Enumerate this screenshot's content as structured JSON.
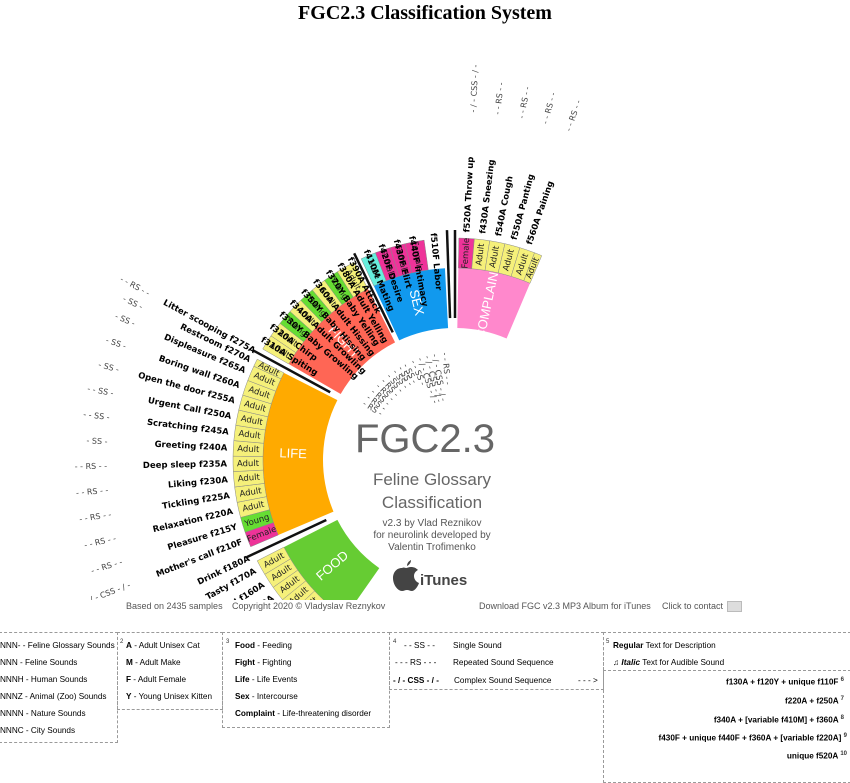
{
  "title": "FGC2.3 Classification System",
  "center": {
    "big": "FGC2.3",
    "line1": "Feline Glossary",
    "line2": "Classification",
    "version": "v2.3 by Vlad Reznikov",
    "dev1": "for neurolink developed by",
    "dev2": "Valentin Trofimenko",
    "store": "iTunes"
  },
  "colors": {
    "food": "#66cc33",
    "life": "#ffaa00",
    "fight": "#ff6655",
    "sex": "#1199ee",
    "complaint": "#ff88cc",
    "adult": "#f5f07a",
    "young": "#66dd33",
    "female": "#ee3399",
    "male": "#66eedd"
  },
  "sectors": [
    {
      "label": "FOOD",
      "a0": -145,
      "a1": -117
    },
    {
      "label": "LIFE",
      "a0": -113,
      "a1": -63
    },
    {
      "label": "FIGHT",
      "a0": -60,
      "a1": -27
    },
    {
      "label": "SEX",
      "a0": -25,
      "a1": -3
    },
    {
      "label": "COMPLAINT",
      "a0": 1,
      "a1": 23
    }
  ],
  "bands": [
    {
      "text": "Female",
      "type": "female",
      "a0": -145,
      "a1": -141
    },
    {
      "text": "Young",
      "type": "young",
      "a0": -141,
      "a1": -137
    },
    {
      "text": "Adult",
      "type": "adult",
      "a0": -137,
      "a1": -133
    },
    {
      "text": "Adult",
      "type": "adult",
      "a0": -133,
      "a1": -129
    },
    {
      "text": "Adult",
      "type": "adult",
      "a0": -129,
      "a1": -125
    },
    {
      "text": "Adult",
      "type": "adult",
      "a0": -125,
      "a1": -121
    },
    {
      "text": "Adult",
      "type": "adult",
      "a0": -121,
      "a1": -117
    },
    {
      "text": "Female",
      "type": "female",
      "a0": -113,
      "a1": -109
    },
    {
      "text": "Young",
      "type": "young",
      "a0": -109,
      "a1": -105
    },
    {
      "text": "Adult",
      "type": "adult",
      "a0": -105,
      "a1": -101
    },
    {
      "text": "Adult",
      "type": "adult",
      "a0": -101,
      "a1": -97
    },
    {
      "text": "Adult",
      "type": "adult",
      "a0": -97,
      "a1": -93
    },
    {
      "text": "Adult",
      "type": "adult",
      "a0": -93,
      "a1": -89
    },
    {
      "text": "Adult",
      "type": "adult",
      "a0": -89,
      "a1": -85
    },
    {
      "text": "Adult",
      "type": "adult",
      "a0": -85,
      "a1": -81
    },
    {
      "text": "Adult",
      "type": "adult",
      "a0": -81,
      "a1": -77
    },
    {
      "text": "Adult",
      "type": "adult",
      "a0": -77,
      "a1": -73
    },
    {
      "text": "Adult",
      "type": "adult",
      "a0": -73,
      "a1": -69
    },
    {
      "text": "Adult",
      "type": "adult",
      "a0": -69,
      "a1": -65
    },
    {
      "text": "Adult",
      "type": "adult",
      "a0": -65,
      "a1": -63
    },
    {
      "text": "Adult",
      "type": "adult",
      "a0": -60,
      "a1": -56
    },
    {
      "text": "Adult",
      "type": "adult",
      "a0": -56,
      "a1": -52
    },
    {
      "text": "Young",
      "type": "young",
      "a0": -52,
      "a1": -48
    },
    {
      "text": "Adult",
      "type": "adult",
      "a0": -48,
      "a1": -44
    },
    {
      "text": "Young",
      "type": "young",
      "a0": -44,
      "a1": -40
    },
    {
      "text": "Adult",
      "type": "adult",
      "a0": -40,
      "a1": -36
    },
    {
      "text": "Young",
      "type": "young",
      "a0": -36,
      "a1": -32
    },
    {
      "text": "Adult",
      "type": "adult",
      "a0": -32,
      "a1": -27
    },
    {
      "text": "Male",
      "type": "male",
      "a0": -25,
      "a1": -21
    },
    {
      "text": "Female",
      "type": "female",
      "a0": -21,
      "a1": -17
    },
    {
      "text": "Female",
      "type": "female",
      "a0": -17,
      "a1": -13
    },
    {
      "text": "Female",
      "type": "female",
      "a0": -13,
      "a1": -8
    },
    {
      "text": "Female",
      "type": "female",
      "a0": 1,
      "a1": 5
    },
    {
      "text": "Adult",
      "type": "adult",
      "a0": 5,
      "a1": 9
    },
    {
      "text": "Adult",
      "type": "adult",
      "a0": 9,
      "a1": 13
    },
    {
      "text": "Adult",
      "type": "adult",
      "a0": 13,
      "a1": 17
    },
    {
      "text": "Adult",
      "type": "adult",
      "a0": 17,
      "a1": 21
    },
    {
      "text": "Adult",
      "type": "adult",
      "a0": 21,
      "a1": 23
    }
  ],
  "labels": [
    {
      "text": "Breast feeding  f110F",
      "a": -143,
      "side": "left",
      "sound": "- / - CSS - / -"
    },
    {
      "text": "Starving  f120Y",
      "a": -139,
      "side": "left",
      "sound": "- - RS - -"
    },
    {
      "text": "Anticipation  f130A",
      "a": -135,
      "side": "left",
      "sound": "- - RS - -"
    },
    {
      "text": "Hunger  f140A",
      "a": -131,
      "side": "left",
      "sound": "- SS -"
    },
    {
      "text": "Dry food  f150A",
      "a": -127,
      "side": "left",
      "sound": "- - RS - -"
    },
    {
      "text": "Wet food  f160A",
      "a": -123,
      "side": "left",
      "sound": "- - RS - -"
    },
    {
      "text": "Tasty  f170A",
      "a": -119,
      "side": "left",
      "sound": "- - RS - -"
    },
    {
      "text": "Drink  f180A",
      "a": -115.5,
      "side": "left",
      "sound": "- - RS - -"
    },
    {
      "text": "Mother's call  f210F",
      "a": -111,
      "side": "left",
      "sound": "- / - CSS - / -"
    },
    {
      "text": "Pleasure  f215Y",
      "a": -107,
      "side": "left",
      "sound": "- - RS - -"
    },
    {
      "text": "Relaxation  f220A",
      "a": -103,
      "side": "left",
      "sound": "- - RS - -"
    },
    {
      "text": "Tickling  f225A",
      "a": -99,
      "side": "left",
      "sound": "- - RS - -"
    },
    {
      "text": "Liking  f230A",
      "a": -95,
      "side": "left",
      "sound": "- - RS - -"
    },
    {
      "text": "Deep sleep  f235A",
      "a": -91,
      "side": "left",
      "sound": "- - RS - -"
    },
    {
      "text": "Greeting  f240A",
      "a": -87,
      "side": "left",
      "sound": "- SS -"
    },
    {
      "text": "Scratching  f245A",
      "a": -83,
      "side": "left",
      "sound": "- - SS -"
    },
    {
      "text": "Urgent Call  f250A",
      "a": -79,
      "side": "left",
      "sound": "- - SS -"
    },
    {
      "text": "Open the door  f255A",
      "a": -75,
      "side": "left",
      "sound": "- SS -"
    },
    {
      "text": "Boring wall  f260A",
      "a": -71,
      "side": "left",
      "sound": "- SS -"
    },
    {
      "text": "Displeasure  f265A",
      "a": -67,
      "side": "left",
      "sound": "- SS -"
    },
    {
      "text": "Restroom  f270A",
      "a": -64,
      "side": "left",
      "sound": "- SS -"
    },
    {
      "text": "Litter scooping  f275A",
      "a": -61.5,
      "side": "left",
      "sound": "- - RS - -"
    },
    {
      "text": "f310A Spiting",
      "a": -58,
      "side": "right",
      "sound": "- RS -"
    },
    {
      "text": "f320A Chirp",
      "a": -54,
      "side": "right",
      "sound": "- RS -"
    },
    {
      "text": "f330Y Baby Growling",
      "a": -50,
      "side": "right",
      "sound": "- RS -"
    },
    {
      "text": "f340A Adult Growling",
      "a": -46,
      "side": "right",
      "sound": "- RS -"
    },
    {
      "text": "f350Y Baby Hissing",
      "a": -42,
      "side": "right",
      "sound": "- RS -"
    },
    {
      "text": "f360A Adult Hissing",
      "a": -38,
      "side": "right",
      "sound": "- SS -"
    },
    {
      "text": "f370Y Baby Yelling",
      "a": -34,
      "side": "right",
      "sound": "- SS -"
    },
    {
      "text": "f380A Adult Yelling",
      "a": -30.5,
      "side": "right",
      "sound": "- SS -"
    },
    {
      "text": "f390A Attack",
      "a": -27.5,
      "side": "right",
      "sound": "- SS -"
    },
    {
      "text": "f410M Mating",
      "a": -23,
      "side": "right",
      "sound": "- - SS -"
    },
    {
      "text": "f420F Desire",
      "a": -19,
      "side": "right",
      "sound": "- / - CSS - / -"
    },
    {
      "text": "f430F Flirt",
      "a": -15,
      "side": "right",
      "sound": "- / - CSS - / -"
    },
    {
      "text": "f440F Intimacy",
      "a": -11,
      "side": "right",
      "sound": "- / - CSS - / -"
    },
    {
      "text": "f510F Labor",
      "a": -5.5,
      "side": "right",
      "sound": "- - RS - -"
    },
    {
      "text": "f520A Throw up",
      "a": 3,
      "side": "right",
      "sound": "- / - CSS - / -"
    },
    {
      "text": "f430A Sneezing",
      "a": 7,
      "side": "right",
      "sound": "- - RS - -"
    },
    {
      "text": "f540A Cough",
      "a": 11,
      "side": "right",
      "sound": "- - RS - -"
    },
    {
      "text": "f550A Panting",
      "a": 15,
      "side": "right",
      "sound": "- - RS - -"
    },
    {
      "text": "f560A Paining",
      "a": 19,
      "side": "right",
      "sound": "- - RS - -"
    }
  ],
  "footer": {
    "samples": "Based on 2435 samples",
    "copyright": "Copyright 2020  ©  Vladyslav Reznykov",
    "download": "Download FGC v2.3 MP3 Album for iTunes",
    "contact": "Click to contact"
  },
  "legend": {
    "col1": [
      "NNN- - Feline Glossary Sounds",
      "NNN -  Feline Sounds",
      "NNNH - Human Sounds",
      "NNNZ - Animal (Zoo) Sounds",
      "NNNN - Nature Sounds",
      "NNNC - City Sounds"
    ],
    "col2_num": "2",
    "col2": [
      {
        "k": "A",
        "v": " - Adult Unisex Cat"
      },
      {
        "k": "M",
        "v": " - Adult Make"
      },
      {
        "k": "F",
        "v": " - Adult Female"
      },
      {
        "k": "Y",
        "v": " - Young Unisex Kitten"
      }
    ],
    "col3_num": "3",
    "col3": [
      {
        "k": "Food",
        "v": " - Feeding"
      },
      {
        "k": "Fight",
        "v": " - Fighting"
      },
      {
        "k": "Life",
        "v": " - Life Events"
      },
      {
        "k": "Sex",
        "v": " - Intercourse"
      },
      {
        "k": "Complaint",
        "v": " - Life-threatening disorder"
      }
    ],
    "col4_num": "4",
    "col4": [
      {
        "k": "- - SS - -",
        "v": "Single Sound"
      },
      {
        "k": "- - - RS - - -",
        "v": "Repeated Sound Sequence"
      },
      {
        "k": "- / - CSS - / -",
        "v": "Complex Sound Sequence"
      }
    ],
    "arrow": "- - - >",
    "col5_num": "5",
    "col5a": "Regular",
    "col5a_v": " Text for Description",
    "col5b": "Italic",
    "col5b_v": " Text for Audible Sound",
    "formulas": [
      {
        "t": "f130A + f120Y + unique f110F",
        "n": "6"
      },
      {
        "t": "f220A + f250A",
        "n": "7"
      },
      {
        "t": "f340A + [variable f410M] + f360A",
        "n": "8"
      },
      {
        "t": "f430F + unique f440F +  f360A + [variable f220A]",
        "n": "9"
      },
      {
        "t": "unique f520A",
        "n": "10"
      }
    ]
  }
}
